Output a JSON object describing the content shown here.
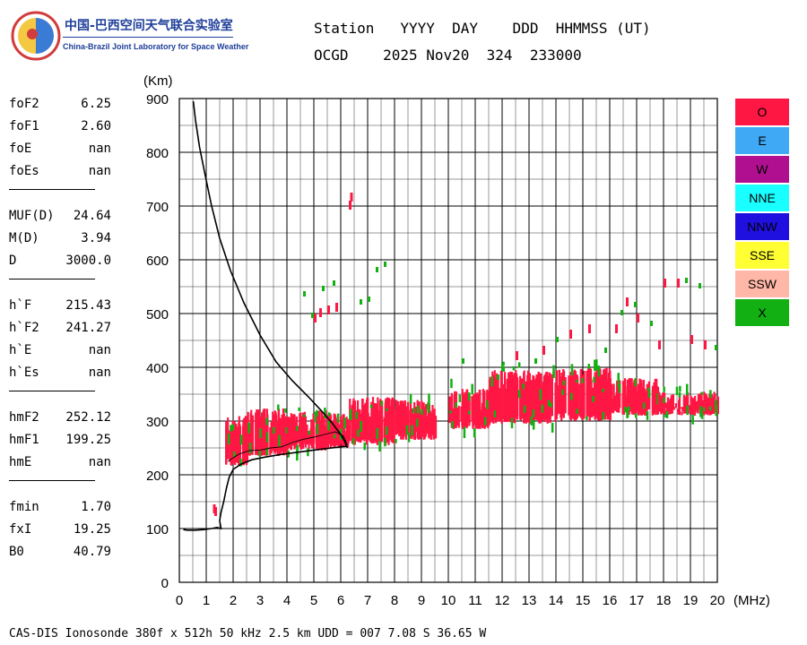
{
  "logo": {
    "cn": "中国-巴西空间天气联合实验室",
    "en": "China-Brazil Joint Laboratory for Space Weather"
  },
  "header": {
    "line1": "Station   YYYY  DAY    DDD  HHMMSS (UT)",
    "line2": "OCGD    2025 Nov20  324  233000"
  },
  "params": {
    "group1": [
      {
        "label": "foF2",
        "value": "6.25"
      },
      {
        "label": "foF1",
        "value": "2.60"
      },
      {
        "label": "foE",
        "value": "nan"
      },
      {
        "label": "foEs",
        "value": "nan"
      }
    ],
    "group2": [
      {
        "label": "MUF(D)",
        "value": "24.64"
      },
      {
        "label": "M(D)",
        "value": "3.94"
      },
      {
        "label": "D",
        "value": "3000.0"
      }
    ],
    "group3": [
      {
        "label": "h`F",
        "value": "215.43"
      },
      {
        "label": "h`F2",
        "value": "241.27"
      },
      {
        "label": "h`E",
        "value": "nan"
      },
      {
        "label": "h`Es",
        "value": "nan"
      }
    ],
    "group4": [
      {
        "label": "hmF2",
        "value": "252.12"
      },
      {
        "label": "hmF1",
        "value": "199.25"
      },
      {
        "label": "hmE",
        "value": "nan"
      }
    ],
    "group5": [
      {
        "label": "fmin",
        "value": "1.70"
      },
      {
        "label": "fxI",
        "value": "19.25"
      },
      {
        "label": "B0",
        "value": "40.79"
      }
    ]
  },
  "legend": [
    {
      "label": "O",
      "color": "#ff1744",
      "text_color": "#000000"
    },
    {
      "label": "E",
      "color": "#3fa9f5",
      "text_color": "#000000"
    },
    {
      "label": "W",
      "color": "#b0108f",
      "text_color": "#000000"
    },
    {
      "label": "NNE",
      "color": "#19ffff",
      "text_color": "#000000"
    },
    {
      "label": "NNW",
      "color": "#2010e0",
      "text_color": "#000000"
    },
    {
      "label": "SSE",
      "color": "#ffff33",
      "text_color": "#000000"
    },
    {
      "label": "SSW",
      "color": "#ffb7a8",
      "text_color": "#000000"
    },
    {
      "label": "X",
      "color": "#12b012",
      "text_color": "#000000"
    }
  ],
  "footer": "CAS-DIS Ionosonde 380f x 512h 50 kHz 2.5 km UDD = 007 7.08 S 36.65 W",
  "chart_data": {
    "type": "scatter",
    "xlabel": "(MHz)",
    "ylabel": "(Km)",
    "xlim": [
      0,
      20
    ],
    "ylim": [
      0,
      900
    ],
    "xticks": [
      0,
      1,
      2,
      3,
      4,
      5,
      6,
      7,
      8,
      9,
      10,
      11,
      12,
      13,
      14,
      15,
      16,
      17,
      18,
      19,
      20
    ],
    "yticks": [
      0,
      100,
      200,
      300,
      400,
      500,
      600,
      700,
      800,
      900
    ],
    "grid": true,
    "o_trace_color": "#ff1744",
    "x_trace_color": "#12b012",
    "o_trace_bands": [
      {
        "f0": 1.7,
        "f1": 2.5,
        "h_low": 215,
        "h_high": 310
      },
      {
        "f0": 2.5,
        "f1": 4.0,
        "h_low": 235,
        "h_high": 325
      },
      {
        "f0": 4.0,
        "f1": 5.5,
        "h_low": 245,
        "h_high": 320
      },
      {
        "f0": 5.5,
        "f1": 6.3,
        "h_low": 250,
        "h_high": 315
      },
      {
        "f0": 6.3,
        "f1": 8.0,
        "h_low": 255,
        "h_high": 345
      },
      {
        "f0": 8.0,
        "f1": 9.5,
        "h_low": 265,
        "h_high": 340
      },
      {
        "f0": 10.0,
        "f1": 11.5,
        "h_low": 285,
        "h_high": 360
      },
      {
        "f0": 11.5,
        "f1": 14.0,
        "h_low": 295,
        "h_high": 395
      },
      {
        "f0": 14.0,
        "f1": 16.0,
        "h_low": 300,
        "h_high": 400
      },
      {
        "f0": 16.0,
        "f1": 17.8,
        "h_low": 310,
        "h_high": 380
      },
      {
        "f0": 17.8,
        "f1": 20.0,
        "h_low": 310,
        "h_high": 355
      }
    ],
    "o_scatter_points": [
      [
        6.3,
        700
      ],
      [
        6.35,
        715
      ],
      [
        5.0,
        490
      ],
      [
        5.2,
        500
      ],
      [
        5.5,
        505
      ],
      [
        5.8,
        510
      ],
      [
        18.0,
        555
      ],
      [
        18.5,
        555
      ],
      [
        16.2,
        470
      ],
      [
        17.0,
        490
      ],
      [
        16.6,
        520
      ],
      [
        14.5,
        460
      ],
      [
        19.0,
        450
      ],
      [
        19.5,
        440
      ],
      [
        15.2,
        470
      ],
      [
        13.5,
        430
      ],
      [
        12.5,
        420
      ],
      [
        17.8,
        440
      ],
      [
        1.25,
        135
      ],
      [
        1.3,
        130
      ]
    ],
    "x_scatter_points": [
      [
        4.6,
        535
      ],
      [
        5.3,
        545
      ],
      [
        5.7,
        555
      ],
      [
        4.9,
        495
      ],
      [
        6.7,
        520
      ],
      [
        7.0,
        525
      ],
      [
        7.3,
        580
      ],
      [
        7.6,
        590
      ],
      [
        19.3,
        550
      ],
      [
        18.8,
        560
      ],
      [
        16.9,
        515
      ],
      [
        16.4,
        500
      ],
      [
        14.0,
        450
      ],
      [
        13.2,
        410
      ],
      [
        12.0,
        395
      ],
      [
        17.5,
        480
      ],
      [
        19.9,
        435
      ],
      [
        10.5,
        410
      ],
      [
        11.8,
        380
      ],
      [
        15.8,
        430
      ]
    ],
    "profile_curve": [
      [
        0.52,
        895
      ],
      [
        0.6,
        860
      ],
      [
        0.75,
        810
      ],
      [
        0.95,
        760
      ],
      [
        1.2,
        700
      ],
      [
        1.5,
        640
      ],
      [
        1.9,
        580
      ],
      [
        2.4,
        520
      ],
      [
        3.0,
        460
      ],
      [
        3.6,
        410
      ],
      [
        4.2,
        375
      ],
      [
        4.8,
        345
      ],
      [
        5.3,
        318
      ],
      [
        5.7,
        295
      ],
      [
        6.0,
        275
      ],
      [
        6.15,
        262
      ],
      [
        6.2,
        255
      ],
      [
        6.25,
        250
      ]
    ],
    "virtual_height_trace": [
      [
        0.15,
        98
      ],
      [
        0.3,
        97
      ],
      [
        0.6,
        97
      ],
      [
        0.9,
        98
      ],
      [
        1.2,
        100
      ],
      [
        1.4,
        102
      ],
      [
        1.55,
        100
      ],
      [
        1.5,
        115
      ],
      [
        1.55,
        130
      ],
      [
        1.65,
        150
      ],
      [
        1.75,
        175
      ],
      [
        1.85,
        195
      ],
      [
        2.0,
        210
      ],
      [
        2.3,
        220
      ],
      [
        2.7,
        228
      ],
      [
        3.2,
        233
      ],
      [
        3.8,
        238
      ],
      [
        4.4,
        242
      ],
      [
        5.0,
        246
      ],
      [
        5.5,
        249
      ],
      [
        6.0,
        252
      ],
      [
        6.25,
        253
      ]
    ],
    "o_trace_line": [
      [
        1.8,
        225
      ],
      [
        2.2,
        238
      ],
      [
        2.6,
        245
      ],
      [
        3.0,
        246
      ],
      [
        3.4,
        250
      ],
      [
        3.8,
        252
      ],
      [
        4.2,
        260
      ],
      [
        4.6,
        266
      ],
      [
        5.0,
        270
      ],
      [
        5.4,
        275
      ],
      [
        5.8,
        280
      ],
      [
        6.1,
        272
      ],
      [
        6.25,
        255
      ]
    ]
  }
}
